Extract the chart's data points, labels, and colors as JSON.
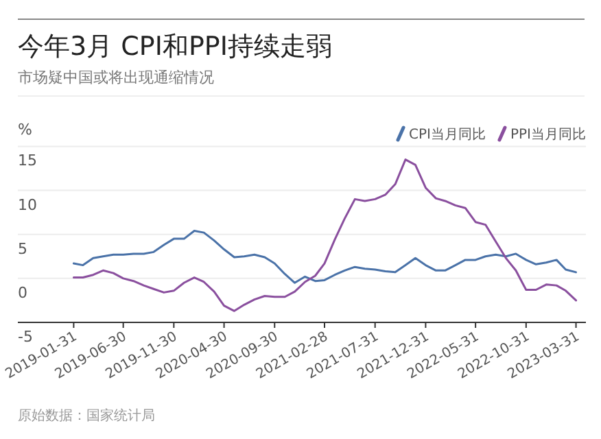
{
  "chart_data": {
    "type": "line",
    "title": "今年3月 CPI和PPI持续走弱",
    "subtitle": "市场疑中国或将出现通缩情况",
    "ylabel": "%",
    "x": [
      "2019-01-31",
      "2019-02-28",
      "2019-03-31",
      "2019-04-30",
      "2019-05-31",
      "2019-06-30",
      "2019-07-31",
      "2019-08-31",
      "2019-09-30",
      "2019-10-31",
      "2019-11-30",
      "2019-12-31",
      "2020-01-31",
      "2020-02-29",
      "2020-03-31",
      "2020-04-30",
      "2020-05-31",
      "2020-06-30",
      "2020-07-31",
      "2020-08-31",
      "2020-09-30",
      "2020-10-31",
      "2020-11-30",
      "2020-12-31",
      "2021-01-31",
      "2021-02-28",
      "2021-03-31",
      "2021-04-30",
      "2021-05-31",
      "2021-06-30",
      "2021-07-31",
      "2021-08-31",
      "2021-09-30",
      "2021-10-31",
      "2021-11-30",
      "2021-12-31",
      "2022-01-31",
      "2022-02-28",
      "2022-03-31",
      "2022-04-30",
      "2022-05-31",
      "2022-06-30",
      "2022-07-31",
      "2022-08-31",
      "2022-09-30",
      "2022-10-31",
      "2022-11-30",
      "2022-12-31",
      "2023-01-31",
      "2023-02-28",
      "2023-03-31"
    ],
    "series": [
      {
        "name": "CPI当月同比",
        "color": "#4a72a8",
        "values": [
          1.7,
          1.5,
          2.3,
          2.5,
          2.7,
          2.7,
          2.8,
          2.8,
          3.0,
          3.8,
          4.5,
          4.5,
          5.4,
          5.2,
          4.3,
          3.3,
          2.4,
          2.5,
          2.7,
          2.4,
          1.7,
          0.5,
          -0.5,
          0.2,
          -0.3,
          -0.2,
          0.4,
          0.9,
          1.3,
          1.1,
          1.0,
          0.8,
          0.7,
          1.5,
          2.3,
          1.5,
          0.9,
          0.9,
          1.5,
          2.1,
          2.1,
          2.5,
          2.7,
          2.5,
          2.8,
          2.1,
          1.6,
          1.8,
          2.1,
          1.0,
          0.7
        ]
      },
      {
        "name": "PPI当月同比",
        "color": "#8a4f9e",
        "values": [
          0.1,
          0.1,
          0.4,
          0.9,
          0.6,
          0.0,
          -0.3,
          -0.8,
          -1.2,
          -1.6,
          -1.4,
          -0.5,
          0.1,
          -0.4,
          -1.5,
          -3.1,
          -3.7,
          -3.0,
          -2.4,
          -2.0,
          -2.1,
          -2.1,
          -1.5,
          -0.4,
          0.3,
          1.7,
          4.4,
          6.8,
          9.0,
          8.8,
          9.0,
          9.5,
          10.7,
          13.5,
          12.9,
          10.3,
          9.1,
          8.8,
          8.3,
          8.0,
          6.4,
          6.1,
          4.2,
          2.3,
          0.9,
          -1.3,
          -1.3,
          -0.7,
          -0.8,
          -1.4,
          -2.5
        ]
      }
    ],
    "xlim": [
      "2018-08-15",
      "2023-04-30"
    ],
    "xticks": [
      "2019-01-31",
      "2019-06-30",
      "2019-11-30",
      "2020-04-30",
      "2020-09-30",
      "2021-02-28",
      "2021-07-31",
      "2021-12-31",
      "2022-05-31",
      "2022-10-31",
      "2023-03-31"
    ],
    "ylim": [
      -5,
      15
    ],
    "yticks": [
      -5,
      0,
      5,
      10,
      15
    ],
    "grid": "y",
    "legend": "top right",
    "marker": "none",
    "line_style": "solid",
    "annotations": [
      "原始数据：国家统计局"
    ]
  }
}
